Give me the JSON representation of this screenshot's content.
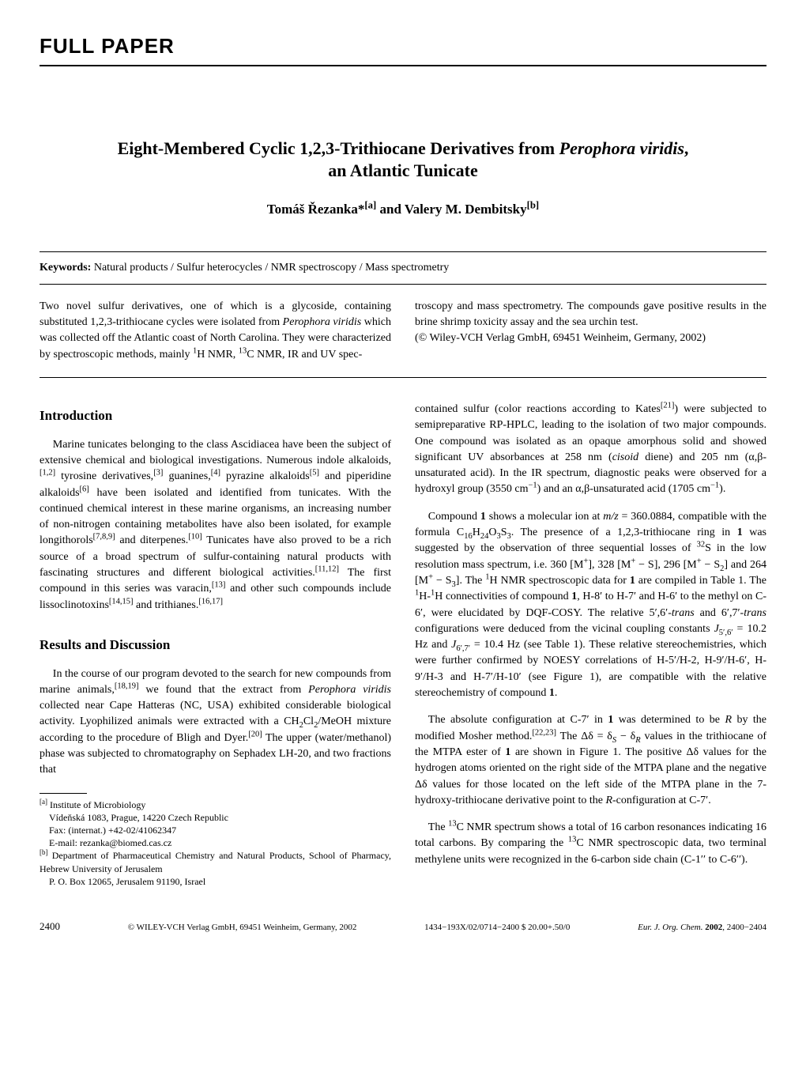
{
  "section_label": "FULL PAPER",
  "title_line1": "Eight-Membered Cyclic 1,2,3-Trithiocane Derivatives from <span class=\"ital\">Perophora viridis</span>,",
  "title_line2": "an Atlantic Tunicate",
  "authors": "Tomáš Řezanka*<sup>[a]</sup> and Valery M. Dembitsky<sup>[b]</sup>",
  "keywords_label": "Keywords:",
  "keywords_text": " Natural products / Sulfur heterocycles / NMR spectroscopy / Mass spectrometry",
  "abstract_left": "Two novel sulfur derivatives, one of which is a glycoside, containing substituted 1,2,3-trithiocane cycles were isolated from <span class=\"ital\">Perophora viridis</span> which was collected off the Atlantic coast of North Carolina. They were characterized by spectroscopic methods, mainly <sup>1</sup>H NMR, <sup>13</sup>C NMR, IR and UV spec-",
  "abstract_right_p1": "troscopy and mass spectrometry. The compounds gave positive results in the brine shrimp toxicity assay and the sea urchin test.",
  "abstract_right_p2": "(© Wiley-VCH Verlag GmbH, 69451 Weinheim, Germany, 2002)",
  "heading_intro": "Introduction",
  "intro_p1": "Marine tunicates belonging to the class Ascidiacea have been the subject of extensive chemical and biological investigations. Numerous indole alkaloids,<sup>[1,2]</sup> tyrosine derivatives,<sup>[3]</sup> guanines,<sup>[4]</sup> pyrazine alkaloids<sup>[5]</sup> and piperidine alkaloids<sup>[6]</sup> have been isolated and identified from tunicates. With the continued chemical interest in these marine organisms, an increasing number of non-nitrogen containing metabolites have also been isolated, for example longithorols<sup>[7,8,9]</sup> and diterpenes.<sup>[10]</sup> Tunicates have also proved to be a rich source of a broad spectrum of sulfur-containing natural products with fascinating structures and different biological activities.<sup>[11,12]</sup> The first compound in this series was varacin,<sup>[13]</sup> and other such compounds include lissoclinotoxins<sup>[14,15]</sup> and trithianes.<sup>[16,17]</sup>",
  "heading_results": "Results and Discussion",
  "results_p1": "In the course of our program devoted to the search for new compounds from marine animals,<sup>[18,19]</sup> we found that the extract from <span class=\"ital\">Perophora viridis</span> collected near Cape Hatteras (NC, USA) exhibited considerable biological activity. Lyophilized animals were extracted with a CH<sub>2</sub>Cl<sub>2</sub>/MeOH mixture according to the procedure of Bligh and Dyer.<sup>[20]</sup> The upper (water/methanol) phase was subjected to chromatography on Sephadex LH-20, and two fractions that",
  "affil_a": "<sup>[a]</sup> Institute of Microbiology<br>&nbsp;&nbsp;&nbsp;&nbsp;Vídeňská 1083, Prague, 14220 Czech Republic<br>&nbsp;&nbsp;&nbsp;&nbsp;Fax: (internat.) +42-02/41062347<br>&nbsp;&nbsp;&nbsp;&nbsp;E-mail: rezanka@biomed.cas.cz",
  "affil_b": "<sup>[b]</sup> Department of Pharmaceutical Chemistry and Natural Products, School of Pharmacy, Hebrew University of Jerusalem<br>&nbsp;&nbsp;&nbsp;&nbsp;P. O. Box 12065, Jerusalem 91190, Israel",
  "right_p1": "contained sulfur (color reactions according to Kates<sup>[21]</sup>) were subjected to semipreparative RP-HPLC, leading to the isolation of two major compounds. One compound was isolated as an opaque amorphous solid and showed significant UV absorbances at 258 nm (<span class=\"ital\">cisoid</span> diene) and 205 nm (α,β-unsaturated acid). In the IR spectrum, diagnostic peaks were observed for a hydroxyl group (3550 cm<sup>−1</sup>) and an α,β-unsaturated acid (1705 cm<sup>−1</sup>).",
  "right_p2": "Compound <b>1</b> shows a molecular ion at <span class=\"ital\">m/z</span> = 360.0884, compatible with the formula C<sub>16</sub>H<sub>24</sub>O<sub>3</sub>S<sub>3</sub>. The presence of a 1,2,3-trithiocane ring in <b>1</b> was suggested by the observation of three sequential losses of <sup>32</sup>S in the low resolution mass spectrum, i.e. 360 [M<sup>+</sup>], 328 [M<sup>+</sup> − S], 296 [M<sup>+</sup> − S<sub>2</sub>] and 264 [M<sup>+</sup> − S<sub>3</sub>]. The <sup>1</sup>H NMR spectroscopic data for <b>1</b> are compiled in Table 1. The <sup>1</sup>H-<sup>1</sup>H connectivities of compound <b>1</b>, H-8′ to H-7′ and H-6′ to the methyl on C-6′, were elucidated by DQF-COSY. The relative 5′,6′-<span class=\"ital\">trans</span> and 6′,7′-<span class=\"ital\">trans</span> configurations were deduced from the vicinal coupling constants <span class=\"ital\">J</span><sub>5′,6′</sub> = 10.2 Hz and <span class=\"ital\">J</span><sub>6′,7′</sub> = 10.4 Hz (see Table 1). These relative stereochemistries, which were further confirmed by NOESY correlations of H-5′/H-2, H-9′/H-6′, H-9′/H-3 and H-7′/H-10′ (see Figure 1), are compatible with the relative stereochemistry of compound <b>1</b>.",
  "right_p3": "The absolute configuration at C-7′ in <b>1</b> was determined to be <span class=\"ital\">R</span> by the modified Mosher method.<sup>[22,23]</sup> The Δδ = δ<sub><span class=\"ital\">S</span></sub> − δ<sub><span class=\"ital\">R</span></sub> values in the trithiocane of the MTPA ester of <b>1</b> are shown in Figure 1. The positive Δδ values for the hydrogen atoms oriented on the right side of the MTPA plane and the negative Δδ values for those located on the left side of the MTPA plane in the 7-hydroxy-trithiocane derivative point to the <span class=\"ital\">R</span>-configuration at C-7′.",
  "right_p4": "The <sup>13</sup>C NMR spectrum shows a total of 16 carbon resonances indicating 16 total carbons. By comparing the <sup>13</sup>C NMR spectroscopic data, two terminal methylene units were recognized in the 6-carbon side chain (C-1′′ to C-6′′).",
  "footer_page": "2400",
  "footer_copyright": "© WILEY-VCH Verlag GmbH, 69451 Weinheim, Germany, 2002",
  "footer_issn": "1434−193X/02/0714−2400 $ 20.00+.50/0",
  "footer_journal": "<span class=\"ital\">Eur. J. Org. Chem.</span> <b>2002</b>, 2400−2404"
}
